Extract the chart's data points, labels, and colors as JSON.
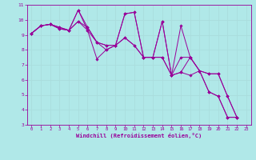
{
  "xlabel": "Windchill (Refroidissement éolien,°C)",
  "bg_color": "#b0e8e8",
  "line_color": "#990099",
  "grid_color": "#aadddd",
  "xlim": [
    -0.5,
    23.5
  ],
  "ylim": [
    3,
    11
  ],
  "xticks": [
    0,
    1,
    2,
    3,
    4,
    5,
    6,
    7,
    8,
    9,
    10,
    11,
    12,
    13,
    14,
    15,
    16,
    17,
    18,
    19,
    20,
    21,
    22,
    23
  ],
  "yticks": [
    3,
    4,
    5,
    6,
    7,
    8,
    9,
    10,
    11
  ],
  "series": [
    [
      9.1,
      9.6,
      9.7,
      9.4,
      9.3,
      10.65,
      9.3,
      7.4,
      8.0,
      8.3,
      10.4,
      10.5,
      7.5,
      7.5,
      9.9,
      6.3,
      9.6,
      7.5,
      6.6,
      5.2,
      4.9,
      3.5,
      3.5
    ],
    [
      9.1,
      9.6,
      9.7,
      9.4,
      9.3,
      9.9,
      9.3,
      8.5,
      8.3,
      8.3,
      8.8,
      8.3,
      7.5,
      7.5,
      7.5,
      6.3,
      6.5,
      6.3,
      6.6,
      5.2,
      4.9,
      3.5,
      3.5
    ],
    [
      9.1,
      9.6,
      9.7,
      9.5,
      9.3,
      10.65,
      9.5,
      8.5,
      8.0,
      8.3,
      10.4,
      10.5,
      7.5,
      7.5,
      9.9,
      6.3,
      7.5,
      7.5,
      6.6,
      6.4,
      6.4,
      4.9,
      3.5
    ],
    [
      9.1,
      9.6,
      9.7,
      9.5,
      9.3,
      9.9,
      9.5,
      8.5,
      8.3,
      8.3,
      8.8,
      8.3,
      7.5,
      7.5,
      7.5,
      6.3,
      6.5,
      7.5,
      6.6,
      6.4,
      6.4,
      4.9,
      3.5
    ]
  ]
}
